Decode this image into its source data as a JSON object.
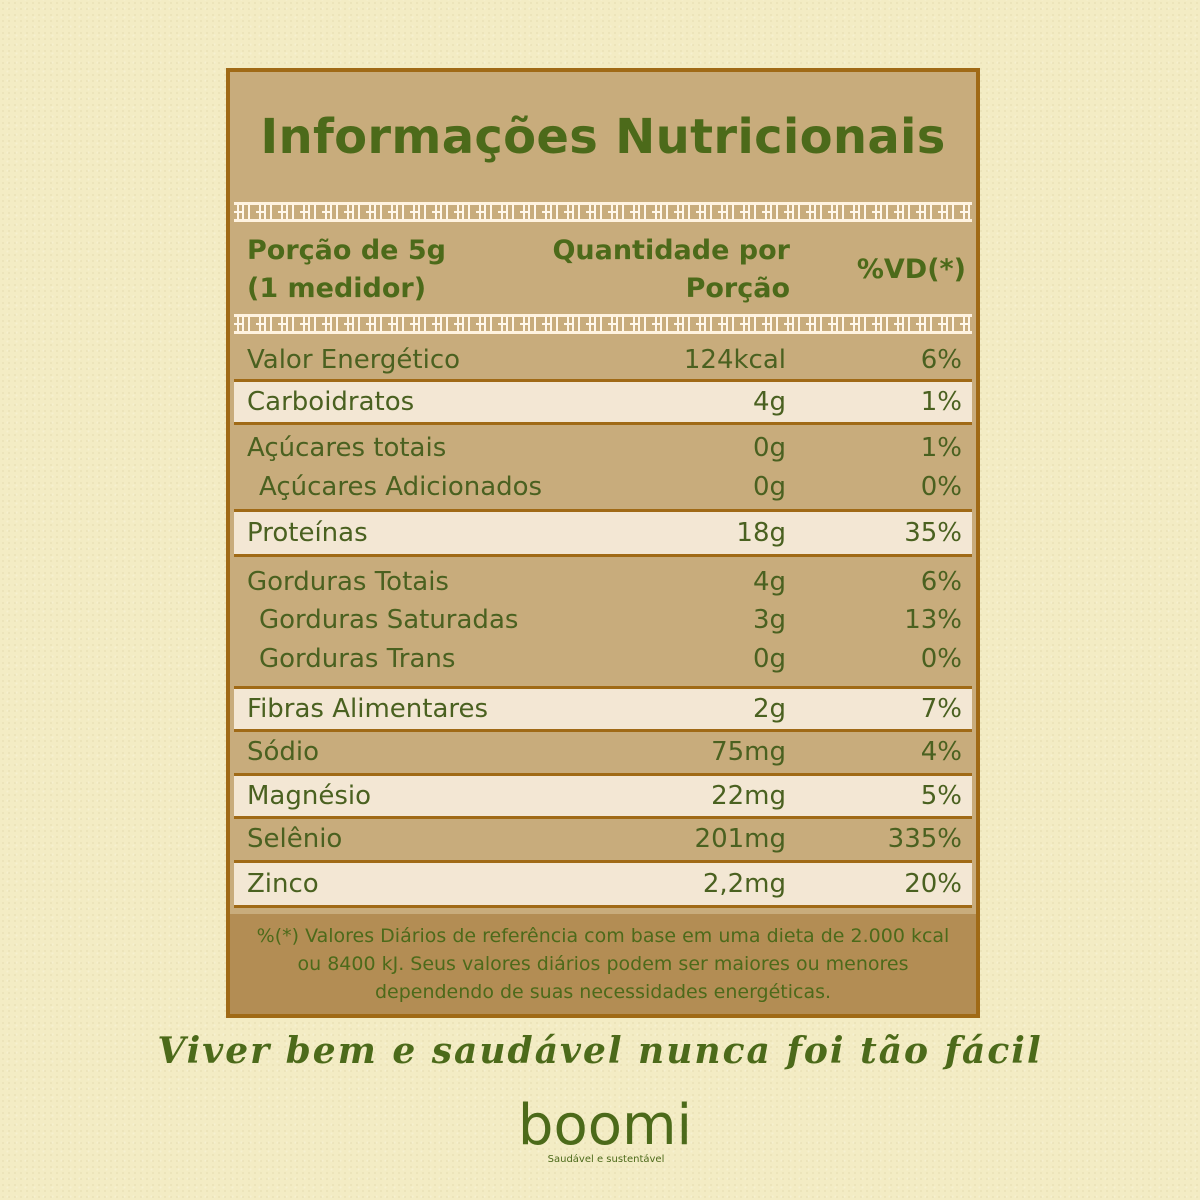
{
  "title": "Informações Nutricionais",
  "header": {
    "portion_line1": "Porção de 5g",
    "portion_line2": "(1 medidor)",
    "qty_line1": "Quantidade por",
    "qty_line2": "Porção",
    "vd": "%VD(*)"
  },
  "rows": [
    {
      "name": "Valor Energético",
      "qty": "124kcal",
      "vd": "6%"
    },
    {
      "name": "Carboidratos",
      "qty": "4g",
      "vd": "1%"
    },
    {
      "name": "Açúcares totais",
      "qty": "0g",
      "vd": "1%"
    },
    {
      "name": "Açúcares Adicionados",
      "qty": "0g",
      "vd": "0%"
    },
    {
      "name": "Proteínas",
      "qty": "18g",
      "vd": "35%"
    },
    {
      "name": "Gorduras Totais",
      "qty": "4g",
      "vd": "6%"
    },
    {
      "name": "Gorduras Saturadas",
      "qty": "3g",
      "vd": "13%"
    },
    {
      "name": "Gorduras Trans",
      "qty": "0g",
      "vd": "0%"
    },
    {
      "name": "Fibras Alimentares",
      "qty": "2g",
      "vd": "7%"
    },
    {
      "name": "Sódio",
      "qty": "75mg",
      "vd": "4%"
    },
    {
      "name": "Magnésio",
      "qty": "22mg",
      "vd": "5%"
    },
    {
      "name": "Selênio",
      "qty": "201mg",
      "vd": "335%"
    },
    {
      "name": "Zinco",
      "qty": "2,2mg",
      "vd": "20%"
    }
  ],
  "footnote": {
    "line1": "%(*) Valores Diários de referência com base em uma dieta de 2.000 kcal",
    "line2": "ou 8400 kJ. Seus valores diários podem ser maiores ou menores",
    "line3": "dependendo de suas necessidades energéticas."
  },
  "slogan": "Viver bem e saudável nunca foi tão fácil",
  "brand": {
    "name": "boomi",
    "tagline": "Saudável e sustentável",
    "color": "#4c6a1a"
  }
}
